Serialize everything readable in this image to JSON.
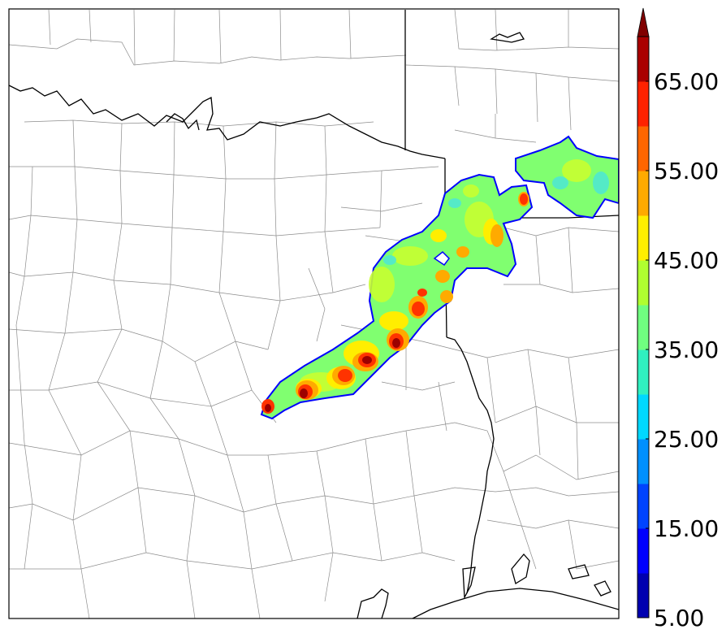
{
  "colorbar": {
    "levels": [
      5,
      10,
      15,
      20,
      25,
      30,
      35,
      40,
      45,
      50,
      55,
      60,
      65,
      70
    ],
    "colors": [
      "#0000b0",
      "#0000ff",
      "#0044ff",
      "#0090ff",
      "#00d8ff",
      "#30f0c0",
      "#70ff80",
      "#b0ff30",
      "#ffee00",
      "#ffaa00",
      "#ff6600",
      "#ff2200",
      "#aa0000",
      "#800000"
    ],
    "tick_labels": [
      "5.00",
      "15.00",
      "25.00",
      "35.00",
      "45.00",
      "55.00",
      "65.00"
    ],
    "extend": "max"
  },
  "style": {
    "boundary_color": "#000000",
    "county_color": "#888888",
    "echo_outline_color": "#0000ff"
  }
}
